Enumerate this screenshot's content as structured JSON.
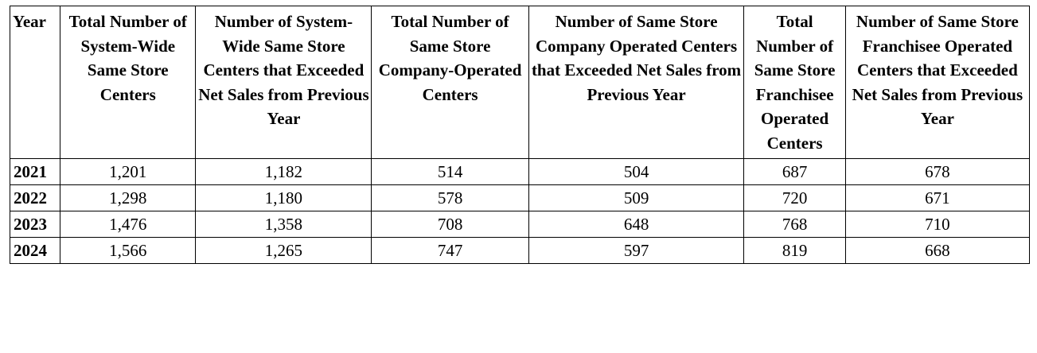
{
  "table": {
    "headers": [
      "Year",
      "Total Number of System-Wide Same Store Centers",
      "Number of System-Wide Same Store Centers that Exceeded Net Sales from Previous Year",
      "Total Number of Same Store Company-Operated Centers",
      "Number of Same Store Company Operated Centers that Exceeded Net Sales from Previous Year",
      "Total Number of Same Store Franchisee Operated Centers",
      "Number of Same Store Franchisee Operated Centers that Exceeded Net Sales from Previous Year"
    ],
    "rows": [
      [
        "2021",
        "1,201",
        "1,182",
        "514",
        "504",
        "687",
        "678"
      ],
      [
        "2022",
        "1,298",
        "1,180",
        "578",
        "509",
        "720",
        "671"
      ],
      [
        "2023",
        "1,476",
        "1,358",
        "708",
        "648",
        "768",
        "710"
      ],
      [
        "2024",
        "1,566",
        "1,265",
        "747",
        "597",
        "819",
        "668"
      ]
    ]
  }
}
